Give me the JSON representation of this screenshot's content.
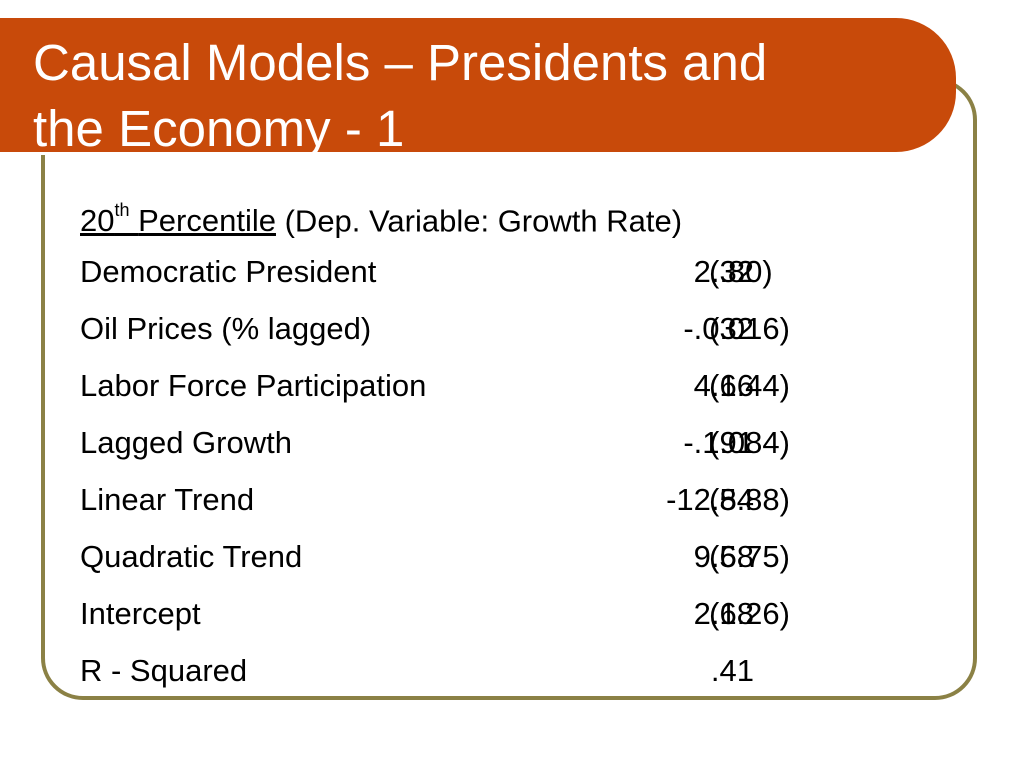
{
  "slide": {
    "title": {
      "line1": "Causal Models – Presidents and",
      "line2": "the Economy - 1"
    },
    "heading": {
      "number": "20",
      "superscript": "th",
      "word": "Percentile",
      "note": "(Dep. Variable: Growth Rate)"
    },
    "rows": [
      {
        "label": "Democratic President",
        "coef": "2.32",
        "se": "(.80)"
      },
      {
        "label": "Oil Prices (% lagged)",
        "coef": "-.032",
        "se": "(.016)"
      },
      {
        "label": "Labor Force Participation",
        "coef": "4.66",
        "se": "(1.44)"
      },
      {
        "label": "Lagged Growth",
        "coef": "-.191",
        "se": "(.084)"
      },
      {
        "label": "Linear Trend",
        "coef": "-12.84",
        "se": "(5.88)"
      },
      {
        "label": "Quadratic Trend",
        "coef": "9.68",
        "se": "(5.75)"
      },
      {
        "label": "Intercept",
        "coef": "2.68",
        "se": "(1.26)"
      },
      {
        "label": "R - Squared",
        "coef": ".41",
        "se": ""
      }
    ]
  },
  "colors": {
    "banner": "#c84a0a",
    "frame": "#8b8145",
    "title_text": "#ffffff",
    "body_text": "#000000"
  }
}
